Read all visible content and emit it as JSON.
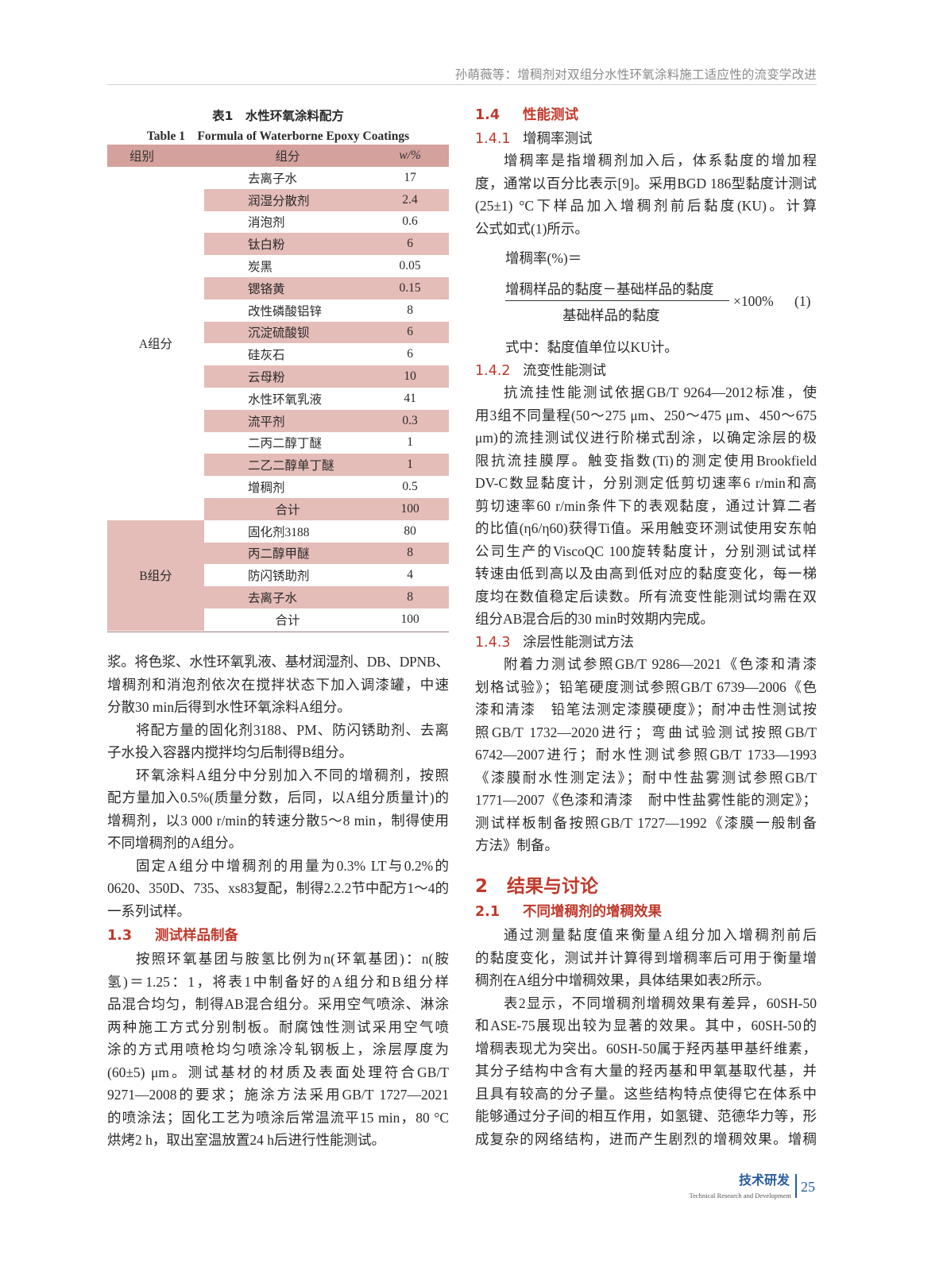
{
  "header": {
    "running_title": "孙萌薇等：增稠剂对双组分水性环氧涂料施工适应性的流变学改进"
  },
  "table": {
    "caption_zh": "表1　水性环氧涂料配方",
    "caption_en": "Table 1　Formula of Waterborne Epoxy Coatings",
    "headers": [
      "组别",
      "组分",
      "w/%"
    ],
    "group_a_label": "A组分",
    "group_a_rows": [
      {
        "name": "去离子水",
        "value": "17"
      },
      {
        "name": "润湿分散剂",
        "value": "2.4"
      },
      {
        "name": "消泡剂",
        "value": "0.6"
      },
      {
        "name": "钛白粉",
        "value": "6"
      },
      {
        "name": "炭黑",
        "value": "0.05"
      },
      {
        "name": "锶铬黄",
        "value": "0.15"
      },
      {
        "name": "改性磷酸铝锌",
        "value": "8"
      },
      {
        "name": "沉淀硫酸钡",
        "value": "6"
      },
      {
        "name": "硅灰石",
        "value": "6"
      },
      {
        "name": "云母粉",
        "value": "10"
      },
      {
        "name": "水性环氧乳液",
        "value": "41"
      },
      {
        "name": "流平剂",
        "value": "0.3"
      },
      {
        "name": "二丙二醇丁醚",
        "value": "1"
      },
      {
        "name": "二乙二醇单丁醚",
        "value": "1"
      },
      {
        "name": "增稠剂",
        "value": "0.5"
      },
      {
        "name": "合计",
        "value": "100"
      }
    ],
    "group_b_label": "B组分",
    "group_b_rows": [
      {
        "name": "固化剂3188",
        "value": "80"
      },
      {
        "name": "丙二醇甲醚",
        "value": "8"
      },
      {
        "name": "防闪锈助剂",
        "value": "4"
      },
      {
        "name": "去离子水",
        "value": "8"
      },
      {
        "name": "合计",
        "value": "100"
      }
    ]
  },
  "left": {
    "paras1": [
      {
        "indent": false,
        "lines": [
          "浆。将色浆、水性环氧乳液、基材润湿剂、DB、DPNB、",
          "增稠剂和消泡剂依次在搅拌状态下加入调漆罐，中速",
          "分散30 min后得到水性环氧涂料A组分。"
        ]
      },
      {
        "indent": true,
        "lines": [
          "将配方量的固化剂3188、PM、防闪锈助剂、去离",
          "子水投入容器内搅拌均匀后制得B组分。"
        ]
      },
      {
        "indent": true,
        "lines": [
          "环氧涂料A组分中分别加入不同的增稠剂，按照",
          "配方量加入0.5%(质量分数，后同，以A组分质量计)的",
          "增稠剂，以3 000 r/min的转速分散5～8 min，制得使用",
          "不同增稠剂的A组分。"
        ]
      },
      {
        "indent": true,
        "lines": [
          "固定A组分中增稠剂的用量为0.3% LT与0.2%的",
          "0620、350D、735、xs83复配，制得2.2.2节中配方1～4的",
          "一系列试样。"
        ]
      }
    ],
    "sec_1_3": {
      "num": "1.3",
      "title": "测试样品制备"
    },
    "paras2": [
      {
        "indent": true,
        "lines": [
          "按照环氧基团与胺氢比例为n(环氧基团)：n(胺",
          "氢)＝1.25：1，将表1中制备好的A组分和B组分样",
          "品混合均匀，制得AB混合组分。采用空气喷涂、淋涂",
          "两种施工方式分别制板。耐腐蚀性测试采用空气喷",
          "涂的方式用喷枪均匀喷涂冷轧钢板上，涂层厚度为",
          "(60±5) μm。测试基材的材质及表面处理符合GB/T",
          "9271—2008的要求；施涂方法采用GB/T 1727—2021",
          "的喷涂法；固化工艺为喷涂后常温流平15 min，80 °C",
          "烘烤2 h，取出室温放置24 h后进行性能测试。"
        ]
      }
    ]
  },
  "right": {
    "sec_1_4": {
      "num": "1.4",
      "title": "性能测试"
    },
    "sec_1_4_1": {
      "num": "1.4.1",
      "title": "增稠率测试"
    },
    "paras_141": [
      {
        "indent": true,
        "lines": [
          "增稠率是指增稠剂加入后，体系黏度的增加程",
          "度，通常以百分比表示[9]。采用BGD 186型黏度计测试",
          "(25±1) °C下样品加入增稠剂前后黏度(KU)。计算",
          "公式如式(1)所示。"
        ]
      }
    ],
    "formula": {
      "lhs": "增稠率(%)＝",
      "numerator": "增稠样品的黏度－基础样品的黏度",
      "denominator": "基础样品的黏度",
      "factor": "×100%",
      "label": "(1)",
      "note": "式中：黏度值单位以KU计。"
    },
    "sec_1_4_2": {
      "num": "1.4.2",
      "title": "流变性能测试"
    },
    "paras_142": [
      {
        "indent": true,
        "lines": [
          "抗流挂性能测试依据GB/T 9264—2012标准，使",
          "用3组不同量程(50～275 μm、250～475 μm、450～675",
          "μm)的流挂测试仪进行阶梯式刮涂，以确定涂层的极",
          "限抗流挂膜厚。触变指数(Ti)的测定使用Brookfield",
          "DV-C数显黏度计，分别测定低剪切速率6 r/min和高",
          "剪切速率60 r/min条件下的表观黏度，通过计算二者",
          "的比值(η6/η60)获得Ti值。采用触变环测试使用安东帕",
          "公司生产的ViscoQC 100旋转黏度计，分别测试试样",
          "转速由低到高以及由高到低对应的黏度变化，每一梯",
          "度均在数值稳定后读数。所有流变性能测试均需在双",
          "组分AB混合后的30 min时效期内完成。"
        ]
      }
    ],
    "sec_1_4_3": {
      "num": "1.4.3",
      "title": "涂层性能测试方法"
    },
    "paras_143": [
      {
        "indent": true,
        "lines": [
          "附着力测试参照GB/T 9286—2021《色漆和清漆",
          "划格试验》；铅笔硬度测试参照GB/T 6739—2006《色",
          "漆和清漆　铅笔法测定漆膜硬度》；耐冲击性测试按",
          "照GB/T 1732—2020进行；弯曲试验测试按照GB/T",
          "6742—2007进行；耐水性测试参照GB/T 1733—1993",
          "《漆膜耐水性测定法》；耐中性盐雾测试参照GB/T",
          "1771—2007《色漆和清漆　耐中性盐雾性能的测定》；",
          "测试样板制备按照GB/T 1727—1992《漆膜一般制备",
          "方法》制备。"
        ]
      }
    ],
    "sec_2": {
      "num": "2",
      "title": "结果与讨论"
    },
    "sec_2_1": {
      "num": "2.1",
      "title": "不同增稠剂的增稠效果"
    },
    "paras_21": [
      {
        "indent": true,
        "lines": [
          "通过测量黏度值来衡量A组分加入增稠剂前后",
          "的黏度变化，测试并计算得到增稠率后可用于衡量增",
          "稠剂在A组分中增稠效果，具体结果如表2所示。"
        ]
      },
      {
        "indent": true,
        "continues": true,
        "lines": [
          "表2显示，不同增稠剂增稠效果有差异，60SH-50",
          "和ASE-75展现出较为显著的效果。其中，60SH-50的",
          "增稠表现尤为突出。60SH-50属于羟丙基甲基纤维素，",
          "其分子结构中含有大量的羟丙基和甲氧基取代基，并",
          "且具有较高的分子量。这些结构特点使得它在体系中",
          "能够通过分子间的相互作用，如氢键、范德华力等，形",
          "成复杂的网络结构，进而产生剧烈的增稠效果。增稠"
        ]
      }
    ]
  },
  "footer": {
    "section_zh": "技术研发",
    "section_en": "Technical Research and Development",
    "page": "25"
  },
  "colors": {
    "accent": "#c0392b",
    "table_header": "#d4a19c",
    "table_stripe": "#e4bcb8",
    "footer_blue": "#2a5d9f"
  }
}
